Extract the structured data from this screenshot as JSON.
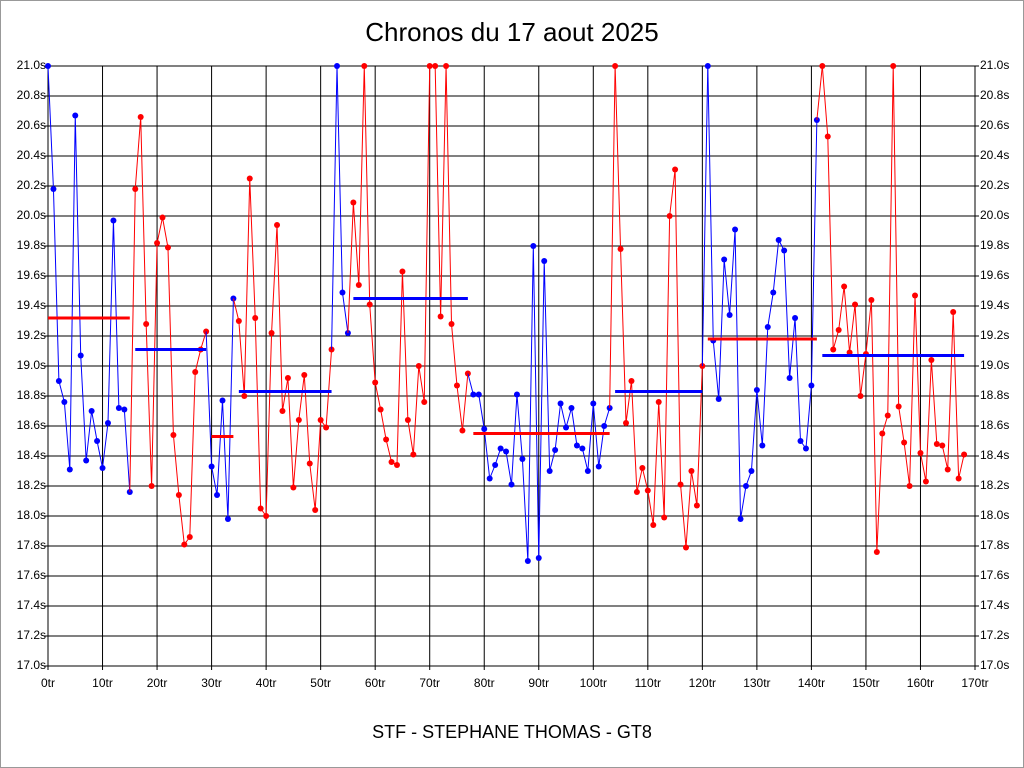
{
  "chart_data": {
    "type": "line",
    "title": "Chronos du 17 aout 2025",
    "footer": "STF - STEPHANE THOMAS - GT8",
    "grid": true,
    "xlim": [
      0,
      170
    ],
    "ylim": [
      17.0,
      21.0
    ],
    "xticks": [
      {
        "value": 0,
        "label": "0tr"
      },
      {
        "value": 10,
        "label": "10tr"
      },
      {
        "value": 20,
        "label": "20tr"
      },
      {
        "value": 30,
        "label": "30tr"
      },
      {
        "value": 40,
        "label": "40tr"
      },
      {
        "value": 50,
        "label": "50tr"
      },
      {
        "value": 60,
        "label": "60tr"
      },
      {
        "value": 70,
        "label": "70tr"
      },
      {
        "value": 80,
        "label": "80tr"
      },
      {
        "value": 90,
        "label": "90tr"
      },
      {
        "value": 100,
        "label": "100tr"
      },
      {
        "value": 110,
        "label": "110tr"
      },
      {
        "value": 120,
        "label": "120tr"
      },
      {
        "value": 130,
        "label": "130tr"
      },
      {
        "value": 140,
        "label": "140tr"
      },
      {
        "value": 150,
        "label": "150tr"
      },
      {
        "value": 160,
        "label": "160tr"
      },
      {
        "value": 170,
        "label": "170tr"
      }
    ],
    "yticks": [
      {
        "value": 17.0,
        "label": "17.0s"
      },
      {
        "value": 17.2,
        "label": "17.2s"
      },
      {
        "value": 17.4,
        "label": "17.4s"
      },
      {
        "value": 17.6,
        "label": "17.6s"
      },
      {
        "value": 17.8,
        "label": "17.8s"
      },
      {
        "value": 18.0,
        "label": "18.0s"
      },
      {
        "value": 18.2,
        "label": "18.2s"
      },
      {
        "value": 18.4,
        "label": "18.4s"
      },
      {
        "value": 18.6,
        "label": "18.6s"
      },
      {
        "value": 18.8,
        "label": "18.8s"
      },
      {
        "value": 19.0,
        "label": "19.0s"
      },
      {
        "value": 19.2,
        "label": "19.2s"
      },
      {
        "value": 19.4,
        "label": "19.4s"
      },
      {
        "value": 19.6,
        "label": "19.6s"
      },
      {
        "value": 19.8,
        "label": "19.8s"
      },
      {
        "value": 20.0,
        "label": "20.0s"
      },
      {
        "value": 20.2,
        "label": "20.2s"
      },
      {
        "value": 20.4,
        "label": "20.4s"
      },
      {
        "value": 20.6,
        "label": "20.6s"
      },
      {
        "value": 20.8,
        "label": "20.8s"
      },
      {
        "value": 21.0,
        "label": "21.0s"
      }
    ],
    "series": [
      {
        "color": "#0000ff",
        "x": [
          0,
          1,
          2,
          3,
          4,
          5,
          6,
          7,
          8,
          9,
          10,
          11,
          12,
          13,
          14,
          15
        ],
        "values": [
          21.0,
          20.18,
          18.9,
          18.76,
          18.31,
          20.67,
          19.07,
          18.37,
          18.7,
          18.5,
          18.32,
          18.62,
          19.97,
          18.72,
          18.71,
          18.16
        ]
      },
      {
        "color": "#ff0000",
        "x": [
          16,
          17,
          18,
          19,
          20,
          21,
          22,
          23,
          24,
          25,
          26,
          27,
          28,
          29
        ],
        "values": [
          20.18,
          20.66,
          19.28,
          18.2,
          19.82,
          19.99,
          19.79,
          18.54,
          18.14,
          17.81,
          17.86,
          18.96,
          19.11,
          19.23
        ]
      },
      {
        "color": "#0000ff",
        "x": [
          30,
          31,
          32,
          33,
          34
        ],
        "values": [
          18.33,
          18.14,
          18.77,
          17.98,
          19.45
        ]
      },
      {
        "color": "#ff0000",
        "x": [
          35,
          36,
          37,
          38,
          39,
          40,
          41,
          42,
          43,
          44,
          45,
          46,
          47,
          48,
          49,
          50,
          51,
          52
        ],
        "values": [
          19.3,
          18.8,
          20.25,
          19.32,
          18.05,
          18.0,
          19.22,
          19.94,
          18.7,
          18.92,
          18.19,
          18.64,
          18.94,
          18.35,
          18.04,
          18.64,
          18.59,
          19.11
        ]
      },
      {
        "color": "#0000ff",
        "x": [
          53,
          54,
          55
        ],
        "values": [
          21.0,
          19.49,
          19.22
        ]
      },
      {
        "color": "#ff0000",
        "x": [
          56,
          57,
          58,
          59,
          60,
          61,
          62,
          63,
          64,
          65,
          66,
          67,
          68,
          69,
          70,
          71,
          72,
          73,
          74,
          75,
          76,
          77
        ],
        "values": [
          20.09,
          19.54,
          21.0,
          19.41,
          18.89,
          18.71,
          18.51,
          18.36,
          18.34,
          19.63,
          18.64,
          18.41,
          19.0,
          18.76,
          21.0,
          21.0,
          19.33,
          21.0,
          19.28,
          18.87,
          18.57,
          18.95
        ]
      },
      {
        "color": "#0000ff",
        "x": [
          78,
          79,
          80,
          81,
          82,
          83,
          84,
          85,
          86,
          87,
          88,
          89,
          90,
          91,
          92,
          93,
          94,
          95,
          96,
          97,
          98,
          99,
          100,
          101,
          102,
          103
        ],
        "values": [
          18.81,
          18.81,
          18.58,
          18.25,
          18.34,
          18.45,
          18.43,
          18.21,
          18.81,
          18.38,
          17.7,
          19.8,
          17.72,
          19.7,
          18.3,
          18.44,
          18.75,
          18.59,
          18.72,
          18.47,
          18.45,
          18.3,
          18.75,
          18.33,
          18.6,
          18.72
        ]
      },
      {
        "color": "#ff0000",
        "x": [
          104,
          105,
          106,
          107,
          108,
          109,
          110,
          111,
          112,
          113,
          114,
          115,
          116,
          117,
          118,
          119,
          120
        ],
        "values": [
          21.0,
          19.78,
          18.62,
          18.9,
          18.16,
          18.32,
          18.17,
          17.94,
          18.76,
          17.99,
          20.0,
          20.31,
          18.21,
          17.79,
          18.3,
          18.07,
          19.0
        ]
      },
      {
        "color": "#0000ff",
        "x": [
          121,
          122,
          123,
          124,
          125,
          126,
          127,
          128,
          129,
          130,
          131,
          132,
          133,
          134,
          135,
          136,
          137,
          138,
          139,
          140,
          141
        ],
        "values": [
          21.0,
          19.17,
          18.78,
          19.71,
          19.34,
          19.91,
          17.98,
          18.2,
          18.3,
          18.84,
          18.47,
          19.26,
          19.49,
          19.84,
          19.77,
          18.92,
          19.32,
          18.5,
          18.45,
          18.87,
          20.64
        ]
      },
      {
        "color": "#ff0000",
        "x": [
          142,
          143,
          144,
          145,
          146,
          147,
          148,
          149,
          150,
          151,
          152,
          153,
          154,
          155,
          156,
          157,
          158,
          159,
          160,
          161,
          162,
          163,
          164,
          165,
          166,
          167,
          168
        ],
        "values": [
          21.0,
          20.53,
          19.11,
          19.24,
          19.53,
          19.09,
          19.41,
          18.8,
          19.08,
          19.44,
          17.76,
          18.55,
          18.67,
          21.0,
          18.73,
          18.49,
          18.2,
          19.47,
          18.42,
          18.23,
          19.04,
          18.48,
          18.47,
          18.31,
          19.36,
          18.25,
          18.41
        ]
      }
    ],
    "averages": [
      {
        "color": "#ff0000",
        "x": [
          0,
          15
        ],
        "value": 19.32
      },
      {
        "color": "#0000ff",
        "x": [
          16,
          29
        ],
        "value": 19.11
      },
      {
        "color": "#ff0000",
        "x": [
          30,
          34
        ],
        "value": 18.53
      },
      {
        "color": "#0000ff",
        "x": [
          35,
          52
        ],
        "value": 18.83
      },
      {
        "color": "#0000ff",
        "x": [
          56,
          77
        ],
        "value": 19.45
      },
      {
        "color": "#ff0000",
        "x": [
          78,
          103
        ],
        "value": 18.55
      },
      {
        "color": "#0000ff",
        "x": [
          104,
          120
        ],
        "value": 18.83
      },
      {
        "color": "#ff0000",
        "x": [
          121,
          141
        ],
        "value": 19.18
      },
      {
        "color": "#0000ff",
        "x": [
          142,
          168
        ],
        "value": 19.07
      }
    ]
  }
}
